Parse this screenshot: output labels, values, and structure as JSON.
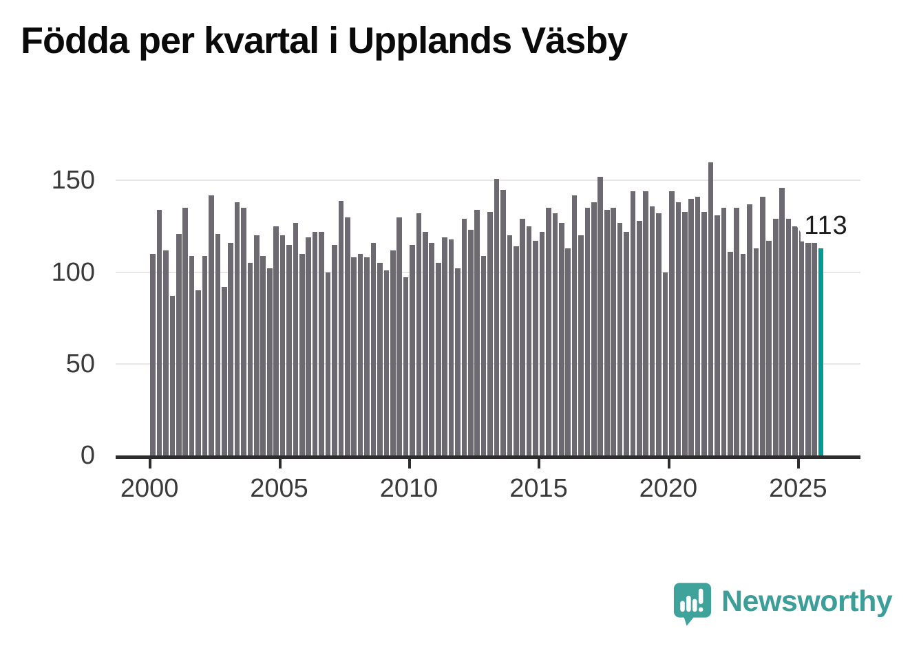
{
  "title": "Födda per kvartal i Upplands Väsby",
  "annotation": {
    "label": "113",
    "points_to": "last-bar"
  },
  "branding": {
    "name": "Newsworthy",
    "brand_color": "#3B9E98"
  },
  "colors": {
    "bar": "#6D6970",
    "highlight": "#009A94",
    "axis": "#2D2D2D",
    "gridline": "#E8E6E8",
    "text": "#3A3A3A",
    "title": "#0A0A0A"
  },
  "chart_data": {
    "type": "bar",
    "title": "Födda per kvartal i Upplands Väsby",
    "x_start": "2000-Q1",
    "x_end": "2025-Q4",
    "interval": "quarter",
    "x_tick_labels": [
      "2000",
      "2005",
      "2010",
      "2015",
      "2020",
      "2025"
    ],
    "y_ticks": [
      0,
      50,
      100,
      150
    ],
    "ylim": [
      0,
      166
    ],
    "grid": "horizontal",
    "legend": "none",
    "series": [
      {
        "name": "Födda per kvartal",
        "values": [
          110,
          134,
          112,
          87,
          121,
          135,
          109,
          90,
          109,
          142,
          121,
          92,
          116,
          138,
          135,
          105,
          120,
          109,
          102,
          125,
          120,
          115,
          127,
          110,
          119,
          122,
          122,
          100,
          115,
          139,
          130,
          108,
          110,
          108,
          116,
          105,
          101,
          112,
          130,
          97,
          115,
          132,
          122,
          116,
          105,
          119,
          118,
          102,
          129,
          123,
          134,
          109,
          133,
          151,
          145,
          120,
          114,
          129,
          125,
          117,
          122,
          135,
          132,
          127,
          113,
          142,
          120,
          135,
          138,
          152,
          134,
          135,
          127,
          122,
          144,
          128,
          144,
          136,
          132,
          100,
          144,
          138,
          133,
          140,
          141,
          133,
          160,
          131,
          135,
          111,
          135,
          110,
          137,
          113,
          141,
          117,
          129,
          146,
          129,
          125,
          127,
          116,
          116,
          113
        ]
      }
    ],
    "highlight_last": true,
    "last_value_label": "113"
  }
}
